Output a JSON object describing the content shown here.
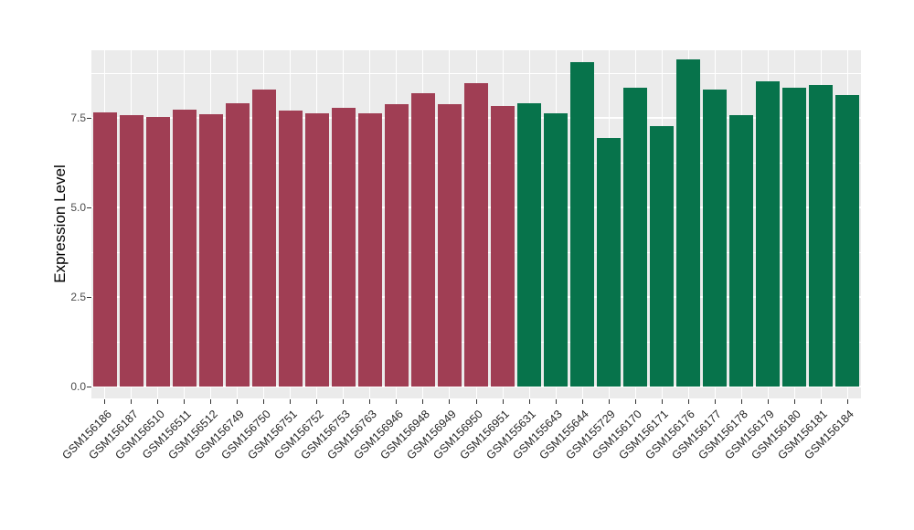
{
  "chart_data": {
    "type": "bar",
    "title": "",
    "xlabel": "",
    "ylabel": "Expression Level",
    "ylim": [
      0,
      9.4
    ],
    "yticks": [
      0,
      2.5,
      5,
      7.5
    ],
    "ytick_labels": [
      "0.0",
      "2.5",
      "5.0",
      "7.5"
    ],
    "minor_yticks": [
      1.25,
      3.75,
      6.25,
      8.75
    ],
    "grid": "on",
    "legend_position": "none",
    "panel_background": "#EBEBEB",
    "grid_color": "#FFFFFF",
    "categories": [
      "GSM156186",
      "GSM156187",
      "GSM156510",
      "GSM156511",
      "GSM156512",
      "GSM156749",
      "GSM156750",
      "GSM156751",
      "GSM156752",
      "GSM156753",
      "GSM156763",
      "GSM156946",
      "GSM156948",
      "GSM156949",
      "GSM156950",
      "GSM156951",
      "GSM155631",
      "GSM155643",
      "GSM155644",
      "GSM155729",
      "GSM156170",
      "GSM156171",
      "GSM156176",
      "GSM156177",
      "GSM156178",
      "GSM156179",
      "GSM156180",
      "GSM156181",
      "GSM156184"
    ],
    "values": [
      7.65,
      7.58,
      7.53,
      7.74,
      7.6,
      7.92,
      8.3,
      7.7,
      7.64,
      7.79,
      7.63,
      7.88,
      8.2,
      7.87,
      8.48,
      7.82,
      7.92,
      7.63,
      9.05,
      6.95,
      8.34,
      7.26,
      9.12,
      8.28,
      7.58,
      8.52,
      8.35,
      8.41,
      8.15
    ],
    "groups": [
      "group1",
      "group1",
      "group1",
      "group1",
      "group1",
      "group1",
      "group1",
      "group1",
      "group1",
      "group1",
      "group1",
      "group1",
      "group1",
      "group1",
      "group1",
      "group1",
      "group2",
      "group2",
      "group2",
      "group2",
      "group2",
      "group2",
      "group2",
      "group2",
      "group2",
      "group2",
      "group2",
      "group2",
      "group2"
    ],
    "group_colors": {
      "group1": "#A03E54",
      "group2": "#07734B"
    }
  }
}
